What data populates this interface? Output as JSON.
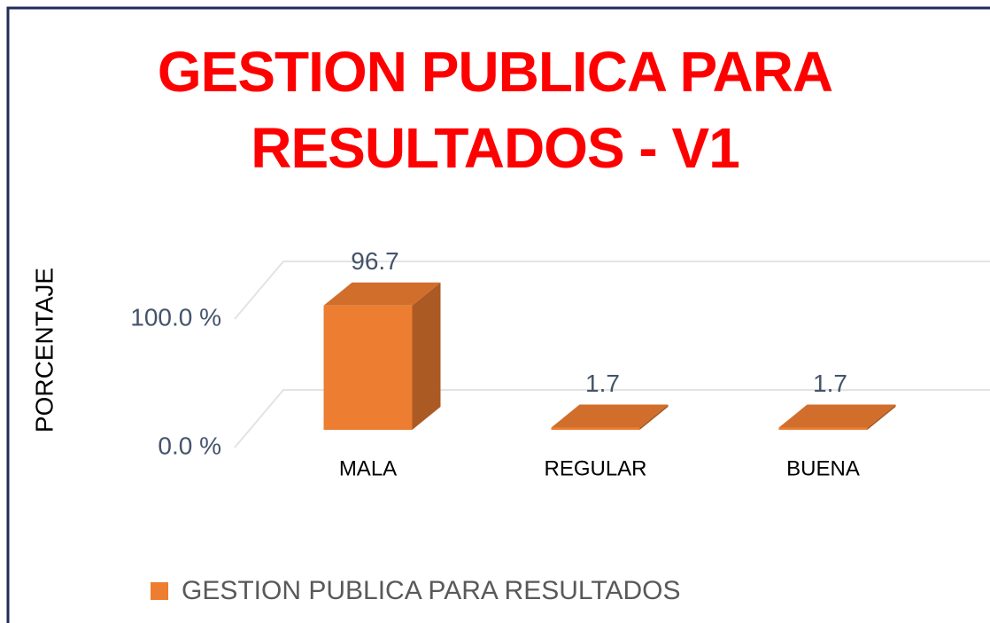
{
  "chart_data": {
    "type": "bar3d",
    "title": "GESTION PUBLICA PARA RESULTADOS - V1",
    "y_axis_label": "PORCENTAJE",
    "categories": [
      "MALA",
      "REGULAR",
      "BUENA"
    ],
    "series": [
      {
        "name": "GESTION PUBLICA PARA RESULTADOS",
        "color": "#ed7d31",
        "values": [
          96.7,
          1.7,
          1.7
        ]
      }
    ],
    "ylim": [
      0,
      100
    ],
    "yticks": [
      {
        "value": 0,
        "label": "0.0 %"
      },
      {
        "value": 100,
        "label": "100.0 %"
      }
    ],
    "grid": true,
    "legend": "bottom-left"
  }
}
